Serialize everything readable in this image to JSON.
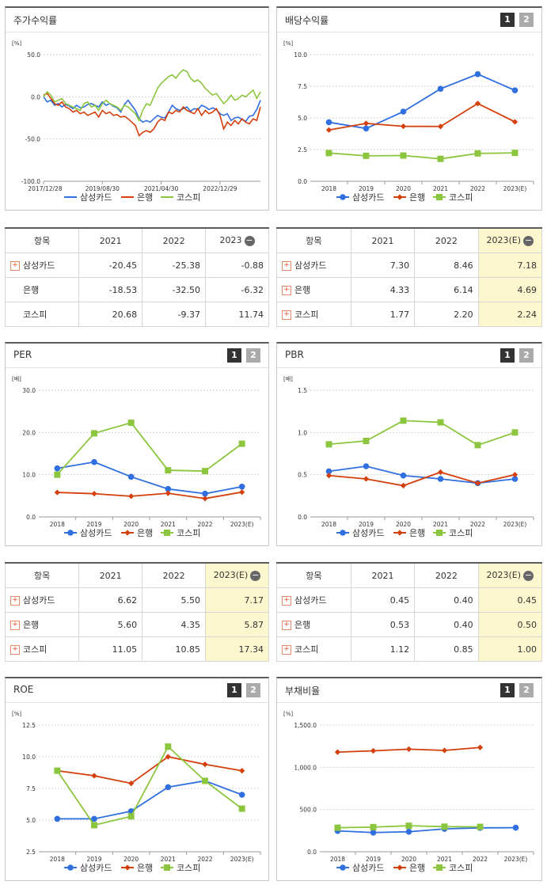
{
  "legend_labels": [
    "삼성카드",
    "은행",
    "코스피"
  ],
  "colors": {
    "s1": "#2f6fe0",
    "s2": "#d43f0b",
    "s3": "#8cc63e"
  },
  "num_buttons": [
    "1",
    "2"
  ],
  "tables": {
    "stock": {
      "headers": [
        "항목",
        "2021",
        "2022",
        "2023"
      ],
      "rows": [
        {
          "name": "삼성카드",
          "plus": true,
          "values": [
            "-20.45",
            "-25.38",
            "-0.88"
          ]
        },
        {
          "name": "은행",
          "plus": false,
          "values": [
            "-18.53",
            "-32.50",
            "-6.32"
          ]
        },
        {
          "name": "코스피",
          "plus": false,
          "values": [
            "20.68",
            "-9.37",
            "11.74"
          ]
        }
      ]
    },
    "dividend": {
      "headers": [
        "항목",
        "2021",
        "2022",
        "2023(E)"
      ],
      "rows": [
        {
          "name": "삼성카드",
          "plus": true,
          "values": [
            "7.30",
            "8.46",
            "7.18"
          ]
        },
        {
          "name": "은행",
          "plus": true,
          "values": [
            "4.33",
            "6.14",
            "4.69"
          ]
        },
        {
          "name": "코스피",
          "plus": true,
          "values": [
            "1.77",
            "2.20",
            "2.24"
          ]
        }
      ]
    },
    "per": {
      "headers": [
        "항목",
        "2021",
        "2022",
        "2023(E)"
      ],
      "rows": [
        {
          "name": "삼성카드",
          "plus": true,
          "values": [
            "6.62",
            "5.50",
            "7.17"
          ]
        },
        {
          "name": "은행",
          "plus": true,
          "values": [
            "5.60",
            "4.35",
            "5.87"
          ]
        },
        {
          "name": "코스피",
          "plus": true,
          "values": [
            "11.05",
            "10.85",
            "17.34"
          ]
        }
      ]
    },
    "pbr": {
      "headers": [
        "항목",
        "2021",
        "2022",
        "2023(E)"
      ],
      "rows": [
        {
          "name": "삼성카드",
          "plus": true,
          "values": [
            "0.45",
            "0.40",
            "0.45"
          ]
        },
        {
          "name": "은행",
          "plus": true,
          "values": [
            "0.53",
            "0.40",
            "0.50"
          ]
        },
        {
          "name": "코스피",
          "plus": true,
          "values": [
            "1.12",
            "0.85",
            "1.00"
          ]
        }
      ]
    }
  },
  "chart_data": [
    {
      "id": "stock",
      "type": "line",
      "title": "주가수익률",
      "unit": "[%]",
      "ylim": [
        -100,
        50
      ],
      "yticks": [
        "50.0",
        "0.0",
        "-50.0",
        "-100.0"
      ],
      "ytick_values": [
        50,
        0,
        -50,
        -100
      ],
      "xtick_labels": [
        "2017/12/28",
        "2019/08/30",
        "2021/04/30",
        "2022/12/29"
      ],
      "x_count": 60,
      "xtick_index": [
        0,
        16,
        32,
        48
      ],
      "series": [
        {
          "name": "삼성카드",
          "values": [
            0,
            -6,
            -4,
            -10,
            -8,
            -12,
            -9,
            -11,
            -14,
            -10,
            -13,
            -12,
            -9,
            -8,
            -10,
            -12,
            -6,
            -10,
            -8,
            -11,
            -13,
            -18,
            -9,
            -4,
            -10,
            -16,
            -26,
            -30,
            -28,
            -30,
            -26,
            -22,
            -24,
            -25,
            -18,
            -10,
            -14,
            -16,
            -14,
            -12,
            -17,
            -14,
            -15,
            -10,
            -12,
            -15,
            -13,
            -15,
            -20,
            -22,
            -20,
            -28,
            -25,
            -24,
            -27,
            -29,
            -23,
            -22,
            -15,
            -4
          ]
        },
        {
          "name": "은행",
          "values": [
            2,
            4,
            -2,
            -8,
            -10,
            -6,
            -12,
            -14,
            -18,
            -16,
            -20,
            -18,
            -22,
            -20,
            -18,
            -24,
            -16,
            -20,
            -18,
            -22,
            -21,
            -24,
            -23,
            -26,
            -30,
            -34,
            -46,
            -42,
            -40,
            -42,
            -38,
            -30,
            -26,
            -28,
            -18,
            -20,
            -16,
            -18,
            -12,
            -16,
            -18,
            -20,
            -14,
            -22,
            -16,
            -20,
            -18,
            -14,
            -22,
            -38,
            -30,
            -34,
            -28,
            -32,
            -26,
            -30,
            -32,
            -26,
            -28,
            -12
          ]
        },
        {
          "name": "코스피",
          "values": [
            0,
            6,
            2,
            -6,
            -4,
            -2,
            -8,
            -10,
            -12,
            -14,
            -16,
            -8,
            -6,
            -12,
            -10,
            -16,
            -8,
            -4,
            -8,
            -10,
            -12,
            -16,
            -10,
            -12,
            -16,
            -20,
            -28,
            -16,
            -8,
            -10,
            0,
            10,
            16,
            20,
            24,
            26,
            22,
            28,
            32,
            30,
            22,
            18,
            20,
            16,
            10,
            6,
            2,
            4,
            -2,
            -8,
            -4,
            2,
            -4,
            -2,
            2,
            0,
            4,
            8,
            -2,
            6
          ]
        }
      ]
    },
    {
      "id": "dividend",
      "type": "line",
      "title": "배당수익률",
      "unit": "[%]",
      "ylim": [
        0,
        10
      ],
      "yticks": [
        "10.0",
        "7.5",
        "5.0",
        "2.5",
        "0.0"
      ],
      "ytick_values": [
        10,
        7.5,
        5,
        2.5,
        0
      ],
      "categories": [
        "2018",
        "2019",
        "2020",
        "2021",
        "2022",
        "2023(E)"
      ],
      "series": [
        {
          "name": "삼성카드",
          "values": [
            4.66,
            4.17,
            5.5,
            7.3,
            8.46,
            7.18
          ]
        },
        {
          "name": "은행",
          "values": [
            4.05,
            4.57,
            4.34,
            4.33,
            6.14,
            4.69
          ]
        },
        {
          "name": "코스피",
          "values": [
            2.23,
            2.01,
            2.03,
            1.77,
            2.2,
            2.24
          ]
        }
      ]
    },
    {
      "id": "per",
      "type": "line",
      "title": "PER",
      "unit": "[배]",
      "ylim": [
        0,
        30
      ],
      "yticks": [
        "30.0",
        "20.0",
        "10.0",
        "0.0"
      ],
      "ytick_values": [
        30,
        20,
        10,
        0
      ],
      "categories": [
        "2018",
        "2019",
        "2020",
        "2021",
        "2022",
        "2023(E)"
      ],
      "series": [
        {
          "name": "삼성카드",
          "values": [
            11.5,
            13.0,
            9.5,
            6.62,
            5.5,
            7.17
          ]
        },
        {
          "name": "은행",
          "values": [
            5.8,
            5.5,
            4.9,
            5.6,
            4.35,
            5.87
          ]
        },
        {
          "name": "코스피",
          "values": [
            10.0,
            19.8,
            22.3,
            11.05,
            10.85,
            17.34
          ]
        }
      ]
    },
    {
      "id": "pbr",
      "type": "line",
      "title": "PBR",
      "unit": "[배]",
      "ylim": [
        0,
        1.5
      ],
      "yticks": [
        "1.5",
        "1.0",
        "0.5",
        "0.0"
      ],
      "ytick_values": [
        1.5,
        1.0,
        0.5,
        0
      ],
      "categories": [
        "2018",
        "2019",
        "2020",
        "2021",
        "2022",
        "2023(E)"
      ],
      "series": [
        {
          "name": "삼성카드",
          "values": [
            0.54,
            0.6,
            0.49,
            0.45,
            0.4,
            0.45
          ]
        },
        {
          "name": "은행",
          "values": [
            0.49,
            0.45,
            0.37,
            0.53,
            0.4,
            0.5
          ]
        },
        {
          "name": "코스피",
          "values": [
            0.86,
            0.9,
            1.14,
            1.12,
            0.85,
            1.0
          ]
        }
      ]
    },
    {
      "id": "roe",
      "type": "line",
      "title": "ROE",
      "unit": "[%]",
      "ylim": [
        2.5,
        12.5
      ],
      "yticks": [
        "12.5",
        "10.0",
        "7.5",
        "5.0",
        "2.5"
      ],
      "ytick_values": [
        12.5,
        10,
        7.5,
        5,
        2.5
      ],
      "categories": [
        "2018",
        "2019",
        "2020",
        "2021",
        "2022",
        "2023(E)"
      ],
      "series": [
        {
          "name": "삼성카드",
          "values": [
            5.1,
            5.1,
            5.7,
            7.6,
            8.1,
            7.0
          ]
        },
        {
          "name": "은행",
          "values": [
            8.9,
            8.5,
            7.9,
            10.0,
            9.4,
            8.9
          ]
        },
        {
          "name": "코스피",
          "values": [
            8.9,
            4.6,
            5.3,
            10.8,
            8.1,
            5.9
          ]
        }
      ]
    },
    {
      "id": "debt",
      "type": "line",
      "title": "부채비율",
      "unit": "[%]",
      "ylim": [
        0,
        1500
      ],
      "yticks": [
        "1,500.0",
        "1,000.0",
        "500.0",
        "0.0"
      ],
      "ytick_values": [
        1500,
        1000,
        500,
        0
      ],
      "categories": [
        "2018",
        "2019",
        "2020",
        "2021",
        "2022",
        "2023(E)"
      ],
      "series": [
        {
          "name": "삼성카드",
          "values": [
            247,
            227,
            237,
            271,
            283,
            285
          ]
        },
        {
          "name": "은행",
          "values": [
            1180,
            1195,
            1215,
            1200,
            1235,
            null
          ]
        },
        {
          "name": "코스피",
          "values": [
            285,
            292,
            308,
            297,
            295,
            null
          ]
        }
      ]
    }
  ]
}
